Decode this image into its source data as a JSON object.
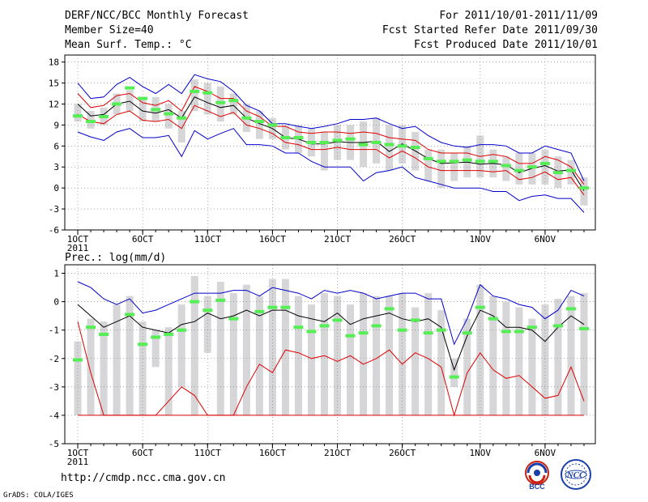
{
  "header": {
    "title": "DERF/NCC/BCC Monthly Forecast",
    "member": "Member Size=40",
    "variable": "Mean Surf. Temp.: °C",
    "period": "For 2011/10/01-2011/11/09",
    "started": "Fcst Started Refer Date 2011/09/30",
    "produced": "Fcst Produced Date 2011/10/01"
  },
  "footer": {
    "url": "http://cmdp.ncc.cma.gov.cn",
    "credit": "GrADS: COLA/IGES"
  },
  "logos": {
    "bcc": "BCC",
    "ncc": "NCC"
  },
  "colors": {
    "mean": "#000000",
    "upper": "#0000cc",
    "lower": "#dd0000",
    "box": "#d6d6d9",
    "median": "#55ee55"
  },
  "chart_data": [
    {
      "type": "line",
      "title": "Mean Surf. Temp.: °C",
      "xlabels": [
        "1OCT",
        "6OCT",
        "11OCT",
        "16OCT",
        "21OCT",
        "26OCT",
        "1NOV",
        "6NOV"
      ],
      "xlabel_indices": [
        0,
        5,
        10,
        15,
        20,
        25,
        31,
        36
      ],
      "year_label": "2011",
      "ylim": [
        -6,
        19
      ],
      "yticks": [
        -6,
        -3,
        0,
        3,
        6,
        9,
        12,
        15,
        18
      ],
      "ytick_labels": [
        "-6",
        "-3",
        "0",
        "3",
        "6",
        "9",
        "12",
        "15",
        "18"
      ],
      "days": 40,
      "series": [
        {
          "name": "ensemble max",
          "values": [
            15.0,
            12.8,
            13.0,
            14.8,
            15.8,
            14.5,
            13.5,
            14.8,
            13.5,
            16.2,
            15.6,
            15.2,
            13.8,
            11.8,
            11.0,
            9.2,
            9.2,
            8.8,
            8.5,
            8.8,
            9.2,
            9.8,
            9.8,
            10.0,
            9.2,
            8.5,
            8.8,
            7.5,
            6.5,
            6.0,
            5.8,
            6.2,
            6.2,
            6.0,
            5.0,
            5.0,
            6.0,
            5.5,
            5.0,
            1.0
          ]
        },
        {
          "name": "mean+sd",
          "values": [
            13.5,
            11.5,
            11.8,
            13.2,
            13.5,
            12.2,
            11.8,
            12.5,
            11.0,
            14.5,
            13.8,
            12.8,
            12.8,
            11.0,
            10.2,
            8.8,
            8.8,
            8.0,
            7.8,
            8.0,
            8.0,
            7.8,
            8.0,
            7.8,
            7.2,
            7.0,
            6.8,
            5.5,
            5.0,
            5.0,
            5.0,
            4.5,
            4.8,
            4.5,
            3.5,
            3.5,
            4.5,
            4.0,
            3.0,
            0.5
          ]
        },
        {
          "name": "ensemble mean",
          "values": [
            12.0,
            10.3,
            10.5,
            12.0,
            12.4,
            11.0,
            10.7,
            11.2,
            10.0,
            13.0,
            12.2,
            11.5,
            11.8,
            10.0,
            9.2,
            8.5,
            7.2,
            7.0,
            6.3,
            6.3,
            6.6,
            6.5,
            6.5,
            6.7,
            5.2,
            6.3,
            5.3,
            4.2,
            3.5,
            3.6,
            3.7,
            3.4,
            3.5,
            3.3,
            2.2,
            2.8,
            3.2,
            2.4,
            2.6,
            -0.4
          ]
        },
        {
          "name": "mean-sd",
          "values": [
            10.5,
            9.5,
            9.2,
            10.5,
            11.0,
            9.7,
            9.5,
            9.8,
            8.5,
            11.8,
            11.0,
            10.2,
            10.8,
            9.0,
            8.5,
            7.8,
            6.5,
            6.2,
            5.5,
            5.5,
            5.8,
            5.5,
            5.5,
            5.5,
            4.3,
            5.3,
            4.3,
            3.0,
            2.5,
            2.5,
            2.5,
            2.5,
            2.3,
            2.5,
            1.2,
            1.5,
            2.3,
            1.2,
            1.5,
            -1.0
          ]
        },
        {
          "name": "ensemble min",
          "values": [
            8.0,
            7.3,
            6.8,
            8.0,
            8.5,
            7.2,
            7.2,
            7.5,
            4.5,
            8.2,
            7.0,
            7.8,
            8.5,
            6.2,
            6.2,
            6.0,
            5.0,
            5.0,
            3.8,
            3.0,
            3.0,
            3.0,
            1.0,
            2.2,
            2.5,
            3.0,
            1.5,
            1.0,
            0.5,
            0.0,
            0.0,
            0.0,
            -0.5,
            -0.5,
            -1.8,
            -1.2,
            -1.0,
            -1.5,
            -1.5,
            -3.5
          ]
        }
      ],
      "box_ranges": [
        [
          9.5,
          12.0
        ],
        [
          8.5,
          11.0
        ],
        [
          9.0,
          11.5
        ],
        [
          10.5,
          13.5
        ],
        [
          11.0,
          14.0
        ],
        [
          9.5,
          13.0
        ],
        [
          9.5,
          13.0
        ],
        [
          8.5,
          12.0
        ],
        [
          6.5,
          11.0
        ],
        [
          11.0,
          15.5
        ],
        [
          10.5,
          15.0
        ],
        [
          9.5,
          14.5
        ],
        [
          10.5,
          13.5
        ],
        [
          8.0,
          12.0
        ],
        [
          7.0,
          11.0
        ],
        [
          7.0,
          10.0
        ],
        [
          5.5,
          9.0
        ],
        [
          5.0,
          9.0
        ],
        [
          4.5,
          8.5
        ],
        [
          2.5,
          8.0
        ],
        [
          4.0,
          9.0
        ],
        [
          4.0,
          9.0
        ],
        [
          3.0,
          9.5
        ],
        [
          3.5,
          10.0
        ],
        [
          2.5,
          9.0
        ],
        [
          3.5,
          9.0
        ],
        [
          2.5,
          8.0
        ],
        [
          1.0,
          5.5
        ],
        [
          0.0,
          5.5
        ],
        [
          1.0,
          5.0
        ],
        [
          1.5,
          6.0
        ],
        [
          1.5,
          7.5
        ],
        [
          1.5,
          5.5
        ],
        [
          1.0,
          4.5
        ],
        [
          0.5,
          5.0
        ],
        [
          0.5,
          5.0
        ],
        [
          0.5,
          5.5
        ],
        [
          0.0,
          4.5
        ],
        [
          0.5,
          4.0
        ],
        [
          -2.5,
          1.5
        ]
      ],
      "median_markers": [
        10.3,
        9.5,
        10.2,
        12.0,
        14.3,
        12.8,
        11.2,
        10.6,
        10.0,
        13.8,
        13.6,
        12.2,
        12.5,
        10.0,
        9.5,
        9.0,
        7.2,
        7.2,
        6.5,
        6.5,
        6.8,
        7.0,
        6.2,
        6.5,
        6.2,
        6.0,
        5.8,
        4.2,
        3.8,
        3.8,
        4.0,
        3.8,
        3.8,
        3.2,
        2.5,
        3.0,
        3.5,
        2.2,
        2.5,
        0.0
      ]
    },
    {
      "type": "line",
      "title": "Prec.: log(mm/d)",
      "xlabels": [
        "1OCT",
        "6OCT",
        "11OCT",
        "16OCT",
        "21OCT",
        "26OCT",
        "1NOV",
        "6NOV"
      ],
      "xlabel_indices": [
        0,
        5,
        10,
        15,
        20,
        25,
        31,
        36
      ],
      "year_label": "2011",
      "ylim": [
        -5,
        1.3
      ],
      "yticks": [
        -5,
        -4,
        -3,
        -2,
        -1,
        0,
        1
      ],
      "ytick_labels": [
        "-5",
        "-4",
        "-3",
        "-2",
        "-1",
        "0",
        "1"
      ],
      "days": 40,
      "series": [
        {
          "name": "ensemble max",
          "values": [
            0.7,
            0.5,
            0.1,
            -0.1,
            0.1,
            -0.4,
            -0.3,
            -0.1,
            0.1,
            0.3,
            0.3,
            0.3,
            0.4,
            0.4,
            0.2,
            0.5,
            0.4,
            0.3,
            0.1,
            0.4,
            0.3,
            0.4,
            0.3,
            0.1,
            0.2,
            0.3,
            0.3,
            0.1,
            0.1,
            -1.5,
            -0.6,
            0.6,
            0.2,
            0.1,
            -0.1,
            -0.2,
            -0.6,
            -0.3,
            0.4,
            0.2
          ]
        },
        {
          "name": "ensemble mean",
          "values": [
            -0.1,
            -0.5,
            -0.9,
            -0.7,
            -0.5,
            -0.9,
            -1.0,
            -1.1,
            -0.8,
            -0.7,
            -0.4,
            -0.6,
            -0.5,
            -0.3,
            -0.5,
            -0.3,
            -0.3,
            -0.5,
            -0.6,
            -0.7,
            -0.4,
            -0.8,
            -0.6,
            -0.5,
            -0.4,
            -0.6,
            -0.7,
            -0.6,
            -0.9,
            -2.4,
            -1.2,
            -0.3,
            -0.5,
            -0.9,
            -0.9,
            -1.0,
            -1.4,
            -0.9,
            -0.5,
            -0.8
          ]
        },
        {
          "name": "lower envelope",
          "values": [
            -0.7,
            -2.5,
            -4.0,
            -4.0,
            -4.0,
            -4.0,
            -4.0,
            -3.5,
            -3.0,
            -3.3,
            -4.0,
            -4.0,
            -4.0,
            -3.0,
            -2.2,
            -2.5,
            -1.7,
            -1.8,
            -2.0,
            -1.9,
            -2.1,
            -1.9,
            -2.2,
            -2.0,
            -1.7,
            -2.2,
            -1.8,
            -2.0,
            -2.3,
            -4.0,
            -2.5,
            -1.8,
            -2.4,
            -2.7,
            -2.6,
            -3.0,
            -3.4,
            -3.3,
            -2.3,
            -3.5
          ]
        }
      ],
      "baseline": -4.0,
      "box_ranges": [
        [
          -4.0,
          -1.4
        ],
        [
          -4.0,
          -0.6
        ],
        [
          -4.0,
          -0.7
        ],
        [
          -4.0,
          -0.1
        ],
        [
          -4.0,
          0.2
        ],
        [
          -4.0,
          -0.7
        ],
        [
          -2.3,
          -1.0
        ],
        [
          -4.0,
          -0.9
        ],
        [
          -3.0,
          -0.1
        ],
        [
          -4.0,
          0.9
        ],
        [
          -1.8,
          0.2
        ],
        [
          -4.0,
          0.7
        ],
        [
          -4.0,
          0.3
        ],
        [
          -4.0,
          0.6
        ],
        [
          -4.0,
          0.2
        ],
        [
          -4.0,
          0.8
        ],
        [
          -4.0,
          0.8
        ],
        [
          -4.0,
          0.2
        ],
        [
          -4.0,
          -0.1
        ],
        [
          -4.0,
          0.3
        ],
        [
          -4.0,
          0.2
        ],
        [
          -4.0,
          -0.1
        ],
        [
          -4.0,
          0.3
        ],
        [
          -4.0,
          0.2
        ],
        [
          -4.0,
          0.2
        ],
        [
          -4.0,
          0.3
        ],
        [
          -4.0,
          -0.2
        ],
        [
          -4.0,
          0.3
        ],
        [
          -4.0,
          -0.3
        ],
        [
          -3.0,
          -2.0
        ],
        [
          -4.0,
          -0.6
        ],
        [
          -4.0,
          0.6
        ],
        [
          -4.0,
          0.2
        ],
        [
          -4.0,
          0.0
        ],
        [
          -4.0,
          -0.2
        ],
        [
          -4.0,
          -0.6
        ],
        [
          -4.0,
          -0.1
        ],
        [
          -4.0,
          0.1
        ],
        [
          -4.0,
          0.2
        ],
        [
          -4.0,
          0.3
        ]
      ],
      "median_markers": [
        -2.05,
        -0.9,
        -1.15,
        null,
        -0.45,
        -1.5,
        -1.25,
        -1.15,
        -1.0,
        0.0,
        -0.3,
        0.05,
        -0.6,
        null,
        -0.35,
        -0.2,
        -0.2,
        -0.9,
        -1.05,
        -0.85,
        -0.65,
        -1.2,
        -1.1,
        -0.85,
        -0.25,
        -1.0,
        -0.65,
        -1.1,
        -1.0,
        -2.65,
        -1.1,
        -0.2,
        -0.6,
        -1.05,
        -1.05,
        -0.9,
        null,
        -0.85,
        -0.25,
        -0.95
      ]
    }
  ]
}
